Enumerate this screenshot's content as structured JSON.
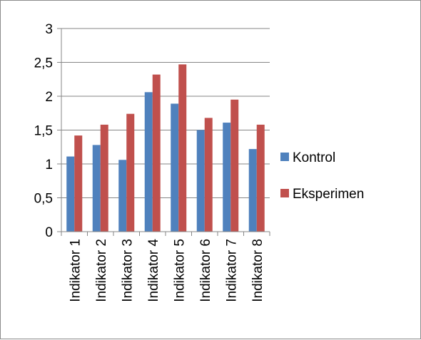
{
  "chart_data": {
    "type": "bar",
    "categories": [
      "Indikator 1",
      "Indikator 2",
      "Indikator 3",
      "Indikator 4",
      "Indikator 5",
      "Indikator 6",
      "Indikator 7",
      "Indikator 8"
    ],
    "series": [
      {
        "name": "Kontrol",
        "color": "#4f81bd",
        "values": [
          1.11,
          1.28,
          1.06,
          2.06,
          1.89,
          1.5,
          1.61,
          1.22
        ]
      },
      {
        "name": "Eksperimen",
        "color": "#c0504d",
        "values": [
          1.42,
          1.58,
          1.74,
          2.32,
          2.47,
          1.68,
          1.95,
          1.58
        ]
      }
    ],
    "ylim": [
      0,
      3
    ],
    "yticks": [
      0,
      0.5,
      1,
      1.5,
      2,
      2.5,
      3
    ],
    "ytick_labels": [
      "0",
      "0,5",
      "1",
      "1,5",
      "2",
      "2,5",
      "3"
    ],
    "grid": true,
    "legend": "right"
  }
}
